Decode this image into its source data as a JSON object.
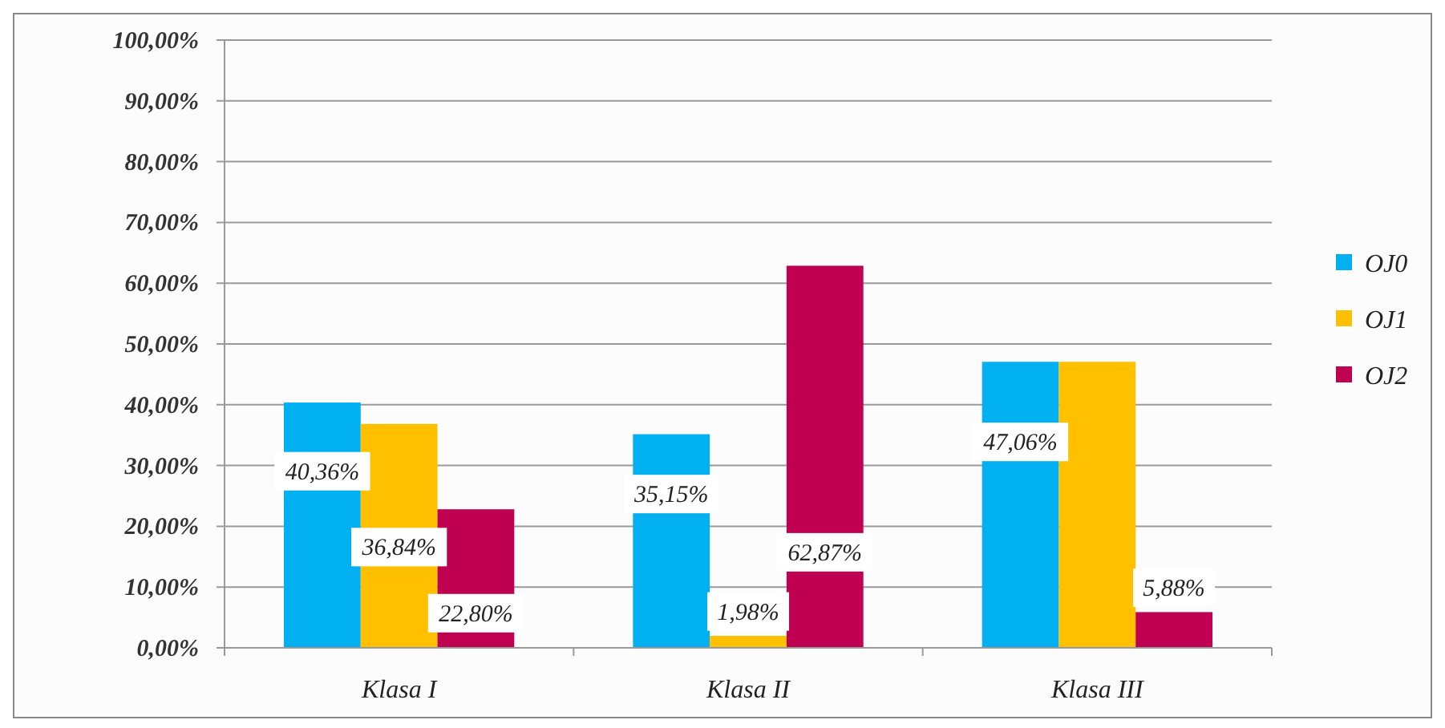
{
  "chart_data": {
    "type": "bar",
    "categories": [
      "Klasa I",
      "Klasa II",
      "Klasa III"
    ],
    "series": [
      {
        "name": "OJ0",
        "color": "#00b0f0",
        "values": [
          40.36,
          35.15,
          47.06
        ],
        "value_labels": [
          "40,36%",
          "35,15%",
          "47,06%"
        ]
      },
      {
        "name": "OJ1",
        "color": "#ffc000",
        "values": [
          36.84,
          1.98,
          47.06
        ],
        "value_labels": [
          "36,84%",
          "1,98%",
          null
        ]
      },
      {
        "name": "OJ2",
        "color": "#c00050",
        "values": [
          22.8,
          62.87,
          5.88
        ],
        "value_labels": [
          "22,80%",
          "62,87%",
          "5,88%"
        ]
      }
    ],
    "ylim": [
      0,
      100
    ],
    "yticks": [
      {
        "value": 0,
        "label": "0,00%"
      },
      {
        "value": 10,
        "label": "10,00%"
      },
      {
        "value": 20,
        "label": "20,00%"
      },
      {
        "value": 30,
        "label": "30,00%"
      },
      {
        "value": 40,
        "label": "40,00%"
      },
      {
        "value": 50,
        "label": "50,00%"
      },
      {
        "value": 60,
        "label": "60,00%"
      },
      {
        "value": 70,
        "label": "70,00%"
      },
      {
        "value": 80,
        "label": "80,00%"
      },
      {
        "value": 90,
        "label": "90,00%"
      },
      {
        "value": 100,
        "label": "100,00%"
      }
    ],
    "grid": "y",
    "legend": "right"
  }
}
